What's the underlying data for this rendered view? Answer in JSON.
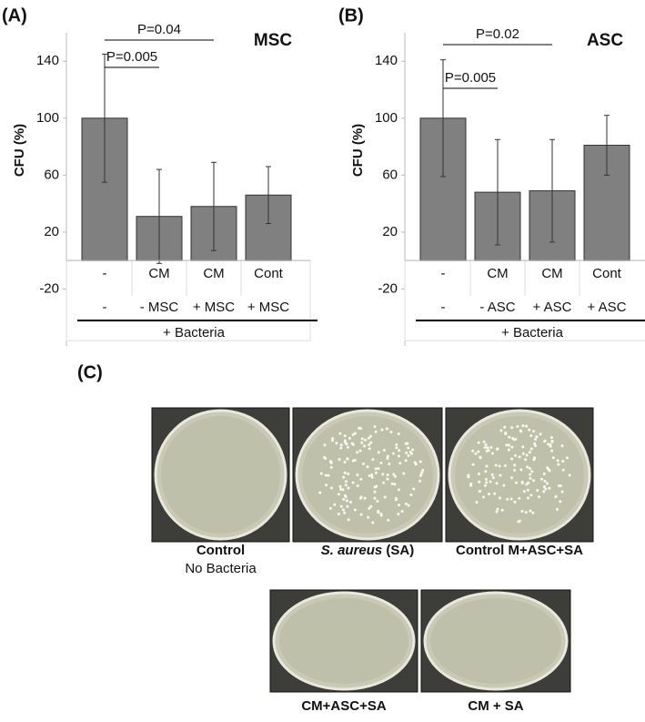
{
  "chart_data": [
    {
      "type": "bar",
      "panel_label": "(A)",
      "title": "MSC",
      "y_label": "CFU (%)",
      "categories": [
        "-",
        "CM",
        "CM",
        "Cont"
      ],
      "categories_row2": [
        "-",
        "- MSC",
        "+ MSC",
        "+ MSC"
      ],
      "group_label": "+ Bacteria",
      "values": [
        100,
        31,
        38,
        46
      ],
      "errors": [
        45,
        33,
        31,
        20
      ],
      "color": "#808080",
      "ylim": [
        -60,
        160
      ],
      "yticks": [
        -20,
        20,
        60,
        100,
        140
      ],
      "annotations": [
        {
          "text": "P=0.04",
          "between": [
            0,
            2
          ]
        },
        {
          "text": "P=0.005",
          "between": [
            0,
            1
          ]
        }
      ]
    },
    {
      "type": "bar",
      "panel_label": "(B)",
      "title": "ASC",
      "y_label": "CFU (%)",
      "categories": [
        "-",
        "CM",
        "CM",
        "Cont"
      ],
      "categories_row2": [
        "-",
        "- ASC",
        "+ ASC",
        "+ ASC"
      ],
      "group_label": "+ Bacteria",
      "values": [
        100,
        48,
        49,
        81
      ],
      "errors": [
        41,
        37,
        36,
        21
      ],
      "color": "#808080",
      "ylim": [
        -60,
        160
      ],
      "yticks": [
        -20,
        20,
        60,
        100,
        140
      ],
      "annotations": [
        {
          "text": "P=0.02",
          "between": [
            0,
            2
          ]
        },
        {
          "text": "P=0.005",
          "between": [
            0,
            1
          ]
        }
      ]
    }
  ],
  "photos": {
    "panel_label": "(C)",
    "plates": [
      {
        "line1": "Control",
        "line2": "No Bacteria"
      },
      {
        "italic": "S. aureus",
        "rest": " (SA)"
      },
      {
        "line1": "Control M+ASC+SA"
      },
      {
        "line1": "CM+ASC+SA"
      },
      {
        "line1": "CM + SA"
      }
    ]
  }
}
